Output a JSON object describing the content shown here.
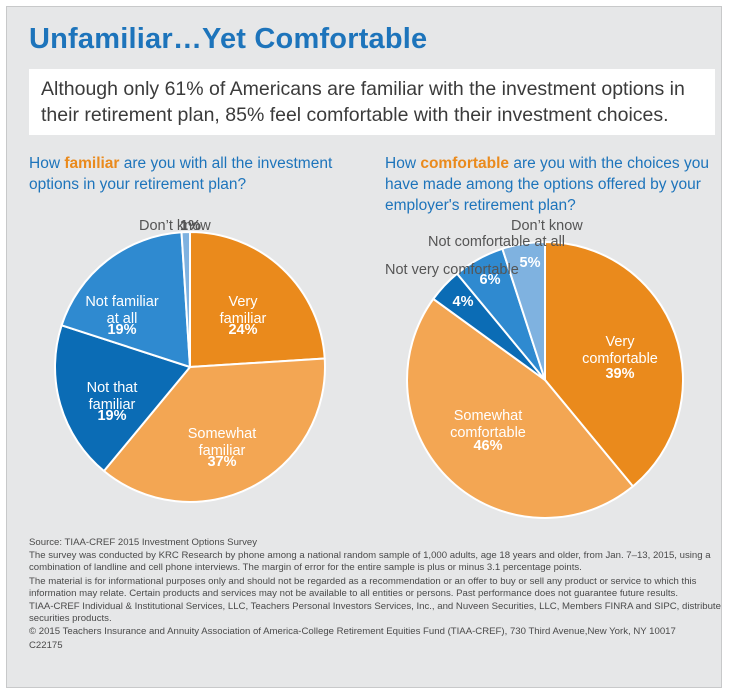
{
  "title": "Unfamiliar…Yet Comfortable",
  "summary": "Although only 61% of Americans are familiar with the investment options in their retirement plan, 85% feel comfortable with their investment choices.",
  "colors": {
    "orange": "#ea8a1c",
    "light_orange": "#f3a653",
    "dark_blue": "#0b6cb5",
    "medium_blue": "#2f8ad0",
    "light_blue": "#7fb2e0",
    "title_blue": "#1d74bb"
  },
  "charts": [
    {
      "question_before": "How ",
      "question_emphasis": "familiar",
      "question_after": " are you with all the investment options in your retirement plan?"
    },
    {
      "question_before": "How ",
      "question_emphasis": "comfortable",
      "question_after": " are you with the choices you have made among the options offered by your employer's retirement plan?"
    }
  ],
  "chart_data": [
    {
      "type": "pie",
      "slices": [
        {
          "label": "Very familiar",
          "label_lines": [
            "Very",
            "familiar"
          ],
          "value": 24,
          "value_label": "24%",
          "color": "#ea8a1c"
        },
        {
          "label": "Somewhat familiar",
          "label_lines": [
            "Somewhat",
            "familiar"
          ],
          "value": 37,
          "value_label": "37%",
          "color": "#f3a653"
        },
        {
          "label": "Not that familiar",
          "label_lines": [
            "Not that",
            "familiar"
          ],
          "value": 19,
          "value_label": "19%",
          "color": "#0b6cb5"
        },
        {
          "label": "Not familiar at all",
          "label_lines": [
            "Not familiar",
            "at all"
          ],
          "value": 19,
          "value_label": "19%",
          "color": "#2f8ad0"
        },
        {
          "label": "Don’t know",
          "label_lines": [
            "Don’t know"
          ],
          "value": 1,
          "value_label": "1%",
          "color": "#7fb2e0"
        }
      ]
    },
    {
      "type": "pie",
      "slices": [
        {
          "label": "Very comfortable",
          "label_lines": [
            "Very",
            "comfortable"
          ],
          "value": 39,
          "value_label": "39%",
          "color": "#ea8a1c"
        },
        {
          "label": "Somewhat comfortable",
          "label_lines": [
            "Somewhat",
            "comfortable"
          ],
          "value": 46,
          "value_label": "46%",
          "color": "#f3a653"
        },
        {
          "label": "Not very comfortable",
          "label_lines": [
            "Not very comfortable"
          ],
          "value": 4,
          "value_label": "4%",
          "color": "#0b6cb5"
        },
        {
          "label": "Not comfortable at all",
          "label_lines": [
            "Not comfortable at all"
          ],
          "value": 6,
          "value_label": "6%",
          "color": "#2f8ad0"
        },
        {
          "label": "Don’t know",
          "label_lines": [
            "Don’t know"
          ],
          "value": 5,
          "value_label": "5%",
          "color": "#7fb2e0"
        }
      ]
    }
  ],
  "footer": {
    "source": "Source: TIAA-CREF 2015 Investment Options Survey",
    "methodology": "The survey was conducted by KRC Research by phone among a national random sample of 1,000 adults, age 18 years and older, from Jan. 7–13, 2015, using a combination of landline and cell phone interviews. The margin of error for the entire sample is plus or minus 3.1 percentage points.",
    "disclaimer": "The material is for informational purposes only and should not be regarded as a recommendation or an offer to buy or sell any product or service to which this information may relate. Certain products and services may not be available to all entities or persons. Past performance does not guarantee future results.",
    "distribution": "TIAA-CREF Individual & Institutional Services, LLC, Teachers Personal Investors Services, Inc., and Nuveen Securities, LLC, Members FINRA and SIPC, distribute securities products.",
    "copyright": "© 2015 Teachers Insurance and Annuity Association of America-College Retirement Equities Fund (TIAA-CREF), 730 Third Avenue,New York, NY 10017",
    "code": "C22175"
  }
}
